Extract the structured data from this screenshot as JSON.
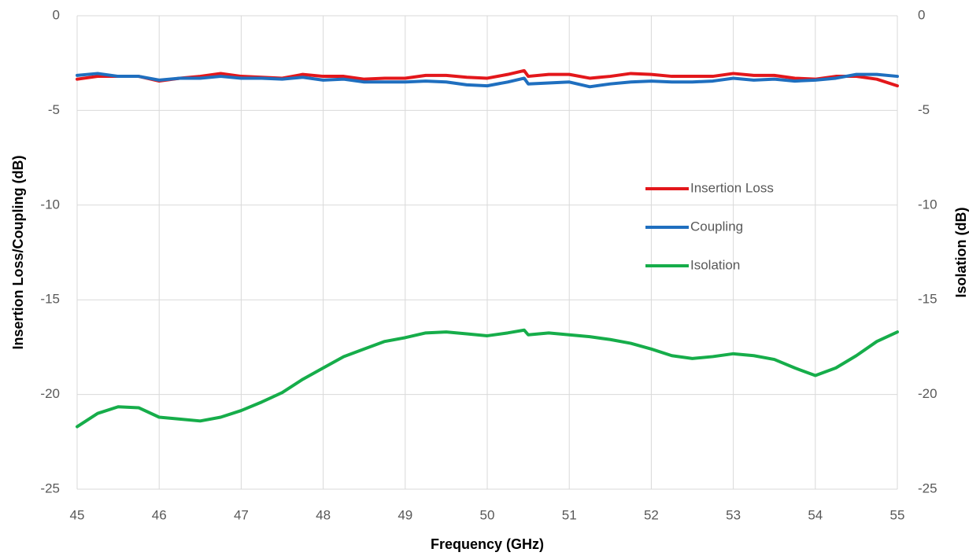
{
  "chart_data": {
    "type": "line",
    "xlabel": "Frequency (GHz)",
    "ylabel": "Insertion Loss/Coupling (dB)",
    "y2label": "Isolation (dB)",
    "xlim": [
      45,
      55
    ],
    "xticks": [
      45,
      46,
      47,
      48,
      49,
      50,
      51,
      52,
      53,
      54,
      55
    ],
    "ylim": [
      -25,
      0
    ],
    "yticks": [
      0,
      -5,
      -10,
      -15,
      -20,
      -25
    ],
    "y2lim": [
      -25,
      0
    ],
    "y2ticks": [
      0,
      -5,
      -10,
      -15,
      -20,
      -25
    ],
    "grid": true,
    "legend": "right",
    "x": [
      45,
      45.25,
      45.5,
      45.75,
      46,
      46.25,
      46.5,
      46.75,
      47,
      47.25,
      47.5,
      47.75,
      48,
      48.25,
      48.5,
      48.75,
      49,
      49.25,
      49.5,
      49.75,
      50,
      50.25,
      50.45,
      50.5,
      50.75,
      51,
      51.25,
      51.5,
      51.75,
      52,
      52.25,
      52.5,
      52.75,
      53,
      53.25,
      53.5,
      53.75,
      54,
      54.25,
      54.5,
      54.75,
      55
    ],
    "series": [
      {
        "name": "Insertion Loss",
        "color": "#e3171b",
        "values": [
          -3.35,
          -3.2,
          -3.2,
          -3.2,
          -3.45,
          -3.3,
          -3.2,
          -3.05,
          -3.2,
          -3.25,
          -3.3,
          -3.1,
          -3.2,
          -3.2,
          -3.35,
          -3.3,
          -3.3,
          -3.15,
          -3.15,
          -3.25,
          -3.3,
          -3.1,
          -2.9,
          -3.2,
          -3.1,
          -3.1,
          -3.3,
          -3.2,
          -3.05,
          -3.1,
          -3.2,
          -3.2,
          -3.2,
          -3.05,
          -3.15,
          -3.15,
          -3.3,
          -3.35,
          -3.2,
          -3.2,
          -3.35,
          -3.7
        ]
      },
      {
        "name": "Coupling",
        "color": "#1f6fbf",
        "values": [
          -3.15,
          -3.05,
          -3.2,
          -3.2,
          -3.4,
          -3.3,
          -3.3,
          -3.2,
          -3.3,
          -3.3,
          -3.35,
          -3.25,
          -3.4,
          -3.35,
          -3.5,
          -3.5,
          -3.5,
          -3.45,
          -3.5,
          -3.65,
          -3.7,
          -3.5,
          -3.3,
          -3.6,
          -3.55,
          -3.5,
          -3.75,
          -3.6,
          -3.5,
          -3.45,
          -3.5,
          -3.5,
          -3.45,
          -3.3,
          -3.4,
          -3.35,
          -3.45,
          -3.4,
          -3.3,
          -3.1,
          -3.1,
          -3.2
        ]
      },
      {
        "name": "Isolation",
        "color": "#16ad4a",
        "axis": "y2",
        "values": [
          -21.7,
          -21.0,
          -20.65,
          -20.7,
          -21.2,
          -21.3,
          -21.4,
          -21.2,
          -20.85,
          -20.4,
          -19.9,
          -19.2,
          -18.6,
          -18.0,
          -17.6,
          -17.2,
          -17.0,
          -16.75,
          -16.7,
          -16.8,
          -16.9,
          -16.75,
          -16.6,
          -16.85,
          -16.75,
          -16.85,
          -16.95,
          -17.1,
          -17.3,
          -17.6,
          -17.95,
          -18.1,
          -18.0,
          -17.85,
          -17.95,
          -18.15,
          -18.6,
          -19.0,
          -18.6,
          -17.95,
          -17.2,
          -16.7
        ]
      }
    ]
  }
}
